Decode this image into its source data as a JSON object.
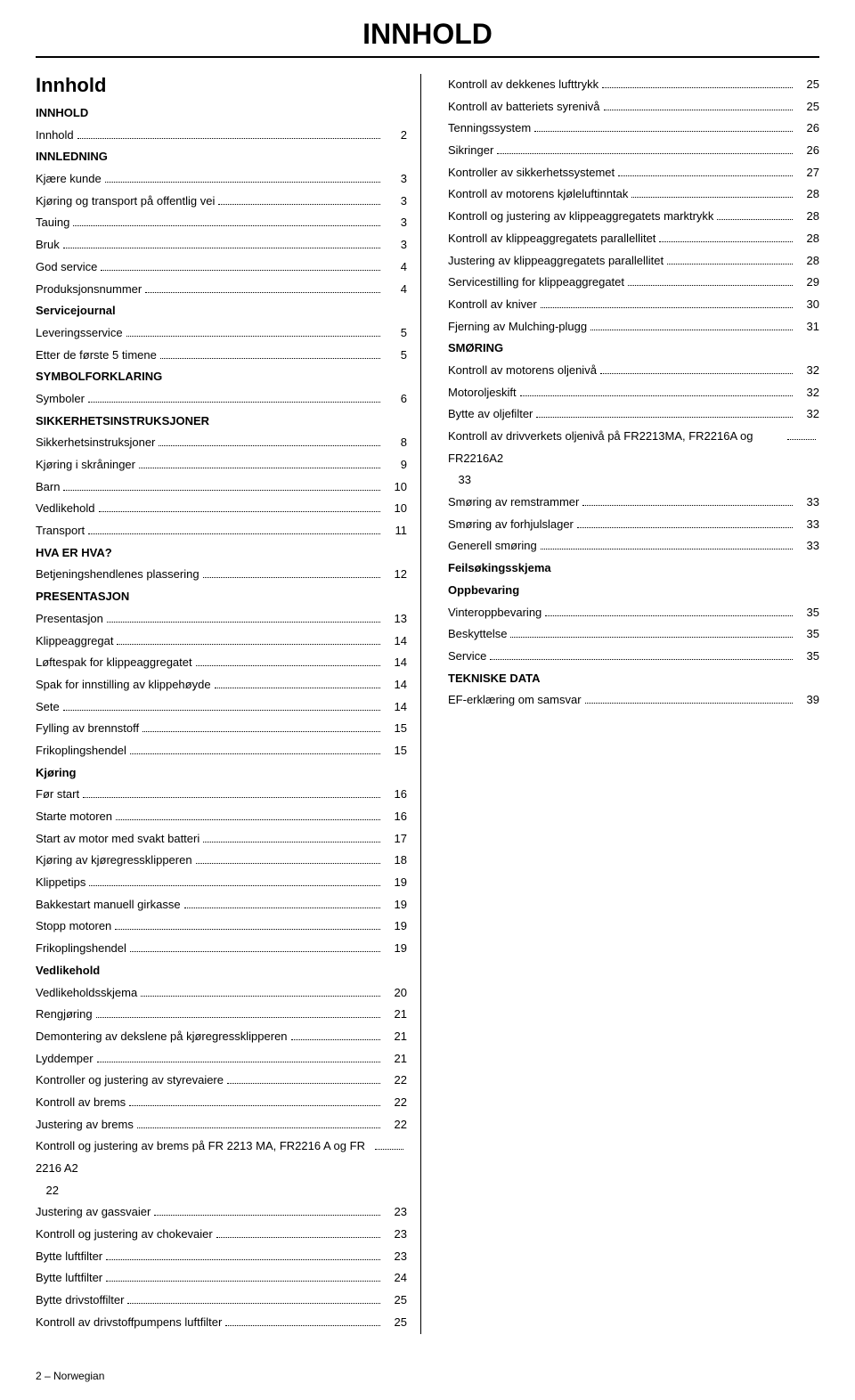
{
  "page_title": "INNHOLD",
  "section_title": "Innhold",
  "footer": "2 – Norwegian",
  "left_column": [
    {
      "type": "heading",
      "text": "INNHOLD"
    },
    {
      "type": "entry",
      "label": "Innhold",
      "page": "2"
    },
    {
      "type": "heading",
      "text": "INNLEDNING"
    },
    {
      "type": "entry",
      "label": "Kjære kunde",
      "page": "3"
    },
    {
      "type": "entry",
      "label": "Kjøring og transport på offentlig vei",
      "page": "3"
    },
    {
      "type": "entry",
      "label": "Tauing",
      "page": "3"
    },
    {
      "type": "entry",
      "label": "Bruk",
      "page": "3"
    },
    {
      "type": "entry",
      "label": "God service",
      "page": "4"
    },
    {
      "type": "entry",
      "label": "Produksjonsnummer",
      "page": "4"
    },
    {
      "type": "heading",
      "text": "Servicejournal"
    },
    {
      "type": "entry",
      "label": "Leveringsservice",
      "page": "5"
    },
    {
      "type": "entry",
      "label": "Etter de første 5 timene",
      "page": "5"
    },
    {
      "type": "heading",
      "text": "SYMBOLFORKLARING"
    },
    {
      "type": "entry",
      "label": "Symboler",
      "page": "6"
    },
    {
      "type": "heading",
      "text": "SIKKERHETSINSTRUKSJONER"
    },
    {
      "type": "entry",
      "label": "Sikkerhetsinstruksjoner",
      "page": "8"
    },
    {
      "type": "entry",
      "label": "Kjøring i skråninger",
      "page": "9"
    },
    {
      "type": "entry",
      "label": "Barn",
      "page": "10"
    },
    {
      "type": "entry",
      "label": "Vedlikehold",
      "page": "10"
    },
    {
      "type": "entry",
      "label": "Transport",
      "page": "11"
    },
    {
      "type": "heading",
      "text": "HVA ER HVA?"
    },
    {
      "type": "entry",
      "label": "Betjeningshendlenes plassering",
      "page": "12"
    },
    {
      "type": "heading",
      "text": "PRESENTASJON"
    },
    {
      "type": "entry",
      "label": "Presentasjon",
      "page": "13"
    },
    {
      "type": "entry",
      "label": "Klippeaggregat",
      "page": "14"
    },
    {
      "type": "entry",
      "label": "Løftespak for klippeaggregatet",
      "page": "14"
    },
    {
      "type": "entry",
      "label": "Spak for innstilling av klippehøyde",
      "page": "14"
    },
    {
      "type": "entry",
      "label": "Sete",
      "page": "14"
    },
    {
      "type": "entry",
      "label": "Fylling av brennstoff",
      "page": "15"
    },
    {
      "type": "entry",
      "label": "Frikoplingshendel",
      "page": "15"
    },
    {
      "type": "heading",
      "text": "Kjøring"
    },
    {
      "type": "entry",
      "label": "Før start",
      "page": "16"
    },
    {
      "type": "entry",
      "label": "Starte motoren",
      "page": "16"
    },
    {
      "type": "entry",
      "label": "Start av motor med svakt batteri",
      "page": "17"
    },
    {
      "type": "entry",
      "label": "Kjøring av kjøregressklipperen",
      "page": "18"
    },
    {
      "type": "entry",
      "label": "Klippetips",
      "page": "19"
    },
    {
      "type": "entry",
      "label": "Bakkestart manuell girkasse",
      "page": "19"
    },
    {
      "type": "entry",
      "label": "Stopp motoren",
      "page": "19"
    },
    {
      "type": "entry",
      "label": "Frikoplingshendel",
      "page": "19"
    },
    {
      "type": "heading",
      "text": "Vedlikehold"
    },
    {
      "type": "entry",
      "label": "Vedlikeholdsskjema",
      "page": "20"
    },
    {
      "type": "entry",
      "label": "Rengjøring",
      "page": "21"
    },
    {
      "type": "entry",
      "label": "Demontering av dekslene på kjøregressklipperen",
      "page": "21"
    },
    {
      "type": "entry",
      "label": "Lyddemper",
      "page": "21"
    },
    {
      "type": "entry",
      "label": "Kontroller og justering av styrevaiere",
      "page": "22"
    },
    {
      "type": "entry",
      "label": "Kontroll av brems",
      "page": "22"
    },
    {
      "type": "entry",
      "label": "Justering av brems",
      "page": "22"
    },
    {
      "type": "entry",
      "label": "Kontroll og justering av brems på FR 2213 MA, FR2216 A og FR 2216 A2",
      "page": "22",
      "wrap": true
    },
    {
      "type": "entry",
      "label": "Justering av gassvaier",
      "page": "23"
    },
    {
      "type": "entry",
      "label": "Kontroll og justering av chokevaier",
      "page": "23"
    },
    {
      "type": "entry",
      "label": "Bytte luftfilter",
      "page": "23"
    },
    {
      "type": "entry",
      "label": "Bytte luftfilter",
      "page": "24"
    },
    {
      "type": "entry",
      "label": "Bytte drivstoffilter",
      "page": "25"
    },
    {
      "type": "entry",
      "label": "Kontroll av drivstoffpumpens luftfilter",
      "page": "25"
    }
  ],
  "right_column": [
    {
      "type": "entry",
      "label": "Kontroll av dekkenes lufttrykk",
      "page": "25"
    },
    {
      "type": "entry",
      "label": "Kontroll av batteriets syrenivå",
      "page": "25"
    },
    {
      "type": "entry",
      "label": "Tenningssystem",
      "page": "26"
    },
    {
      "type": "entry",
      "label": "Sikringer",
      "page": "26"
    },
    {
      "type": "entry",
      "label": "Kontroller av sikkerhetssystemet",
      "page": "27"
    },
    {
      "type": "entry",
      "label": "Kontroll av motorens kjøleluftinntak",
      "page": "28"
    },
    {
      "type": "entry",
      "label": "Kontroll og justering av klippeaggregatets marktrykk",
      "page": "28"
    },
    {
      "type": "entry",
      "label": "Kontroll av klippeaggregatets parallellitet",
      "page": "28"
    },
    {
      "type": "entry",
      "label": "Justering av klippeaggregatets parallellitet",
      "page": "28"
    },
    {
      "type": "entry",
      "label": "Servicestilling for klippeaggregatet",
      "page": "29"
    },
    {
      "type": "entry",
      "label": "Kontroll av kniver",
      "page": "30"
    },
    {
      "type": "entry",
      "label": "Fjerning av Mulching-plugg",
      "page": "31"
    },
    {
      "type": "heading",
      "text": "SMØRING"
    },
    {
      "type": "entry",
      "label": "Kontroll av motorens oljenivå",
      "page": "32"
    },
    {
      "type": "entry",
      "label": "Motoroljeskift",
      "page": "32"
    },
    {
      "type": "entry",
      "label": "Bytte av oljefilter",
      "page": "32"
    },
    {
      "type": "entry",
      "label": "Kontroll av drivverkets oljenivå på FR2213MA, FR2216A og FR2216A2",
      "page": "33",
      "wrap": true
    },
    {
      "type": "entry",
      "label": "Smøring av remstrammer",
      "page": "33"
    },
    {
      "type": "entry",
      "label": "Smøring av forhjulslager",
      "page": "33"
    },
    {
      "type": "entry",
      "label": "Generell smøring",
      "page": "33"
    },
    {
      "type": "heading",
      "text": "Feilsøkingsskjema"
    },
    {
      "type": "heading",
      "text": "Oppbevaring"
    },
    {
      "type": "entry",
      "label": "Vinteroppbevaring",
      "page": "35"
    },
    {
      "type": "entry",
      "label": "Beskyttelse",
      "page": "35"
    },
    {
      "type": "entry",
      "label": "Service",
      "page": "35"
    },
    {
      "type": "heading",
      "text": "TEKNISKE DATA"
    },
    {
      "type": "entry",
      "label": "EF-erklæring om samsvar",
      "page": "39"
    }
  ]
}
